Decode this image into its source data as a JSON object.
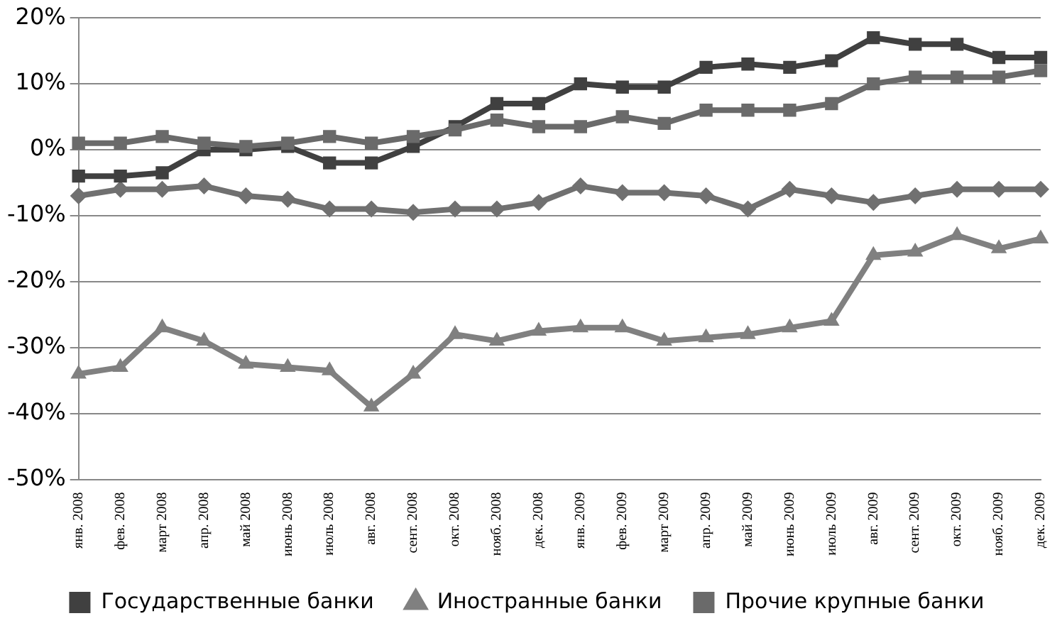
{
  "chart_data": {
    "type": "line",
    "categories": [
      "янв. 2008",
      "фев. 2008",
      "март 2008",
      "апр. 2008",
      "май 2008",
      "июнь 2008",
      "июль 2008",
      "авг. 2008",
      "сент. 2008",
      "окт. 2008",
      "нояб. 2008",
      "дек. 2008",
      "янв. 2009",
      "фев. 2009",
      "март 2009",
      "апр. 2009",
      "май 2009",
      "июнь 2009",
      "июль 2009",
      "авг. 2009",
      "сент. 2009",
      "окт. 2009",
      "нояб. 2009",
      "дек. 2009"
    ],
    "series": [
      {
        "color": "#707070",
        "marker": "diamond",
        "values": [
          -7,
          -6,
          -6,
          -5.5,
          -7,
          -7.5,
          -9,
          -9,
          -9.5,
          -9,
          -9,
          -8,
          -5.5,
          -6.5,
          -6.5,
          -7,
          -9,
          -6,
          -7,
          -8,
          -7,
          -6,
          -6,
          -6
        ]
      },
      {
        "name": "Государственные банки",
        "color": "#404040",
        "marker": "square",
        "values": [
          -4,
          -4,
          -3.5,
          0,
          0,
          0.5,
          -2,
          -2,
          0.5,
          3.5,
          7,
          7,
          10,
          9.5,
          9.5,
          12.5,
          13,
          12.5,
          13.5,
          17,
          16,
          16,
          14,
          14
        ]
      },
      {
        "name": "Иностранные банки",
        "color": "#808080",
        "marker": "triangle",
        "values": [
          -34,
          -33,
          -27,
          -29,
          -32.5,
          -33,
          -33.5,
          -39,
          -34,
          -28,
          -29,
          -27.5,
          -27,
          -27,
          -29,
          -28.5,
          -28,
          -27,
          -26,
          -16,
          -15.5,
          -13,
          -15,
          -13.5
        ]
      },
      {
        "name": "Прочие крупные банки",
        "color": "#6a6a6a",
        "marker": "square",
        "values": [
          1,
          1,
          2,
          1,
          0.5,
          1,
          2,
          1,
          2,
          3,
          4.5,
          3.5,
          3.5,
          5,
          4,
          6,
          6,
          6,
          7,
          10,
          11,
          11,
          11,
          12
        ]
      }
    ],
    "ylim": [
      -50,
      20
    ],
    "yticks": [
      {
        "value": -50,
        "label": "-50%"
      },
      {
        "value": -40,
        "label": "-40%"
      },
      {
        "value": -30,
        "label": "-30%"
      },
      {
        "value": -20,
        "label": "-20%"
      },
      {
        "value": -10,
        "label": "-10%"
      },
      {
        "value": 0,
        "label": "0%"
      },
      {
        "value": 10,
        "label": "10%"
      },
      {
        "value": 20,
        "label": "20%"
      }
    ],
    "grid": "y",
    "legend": "bottom",
    "line_style": "solid"
  }
}
